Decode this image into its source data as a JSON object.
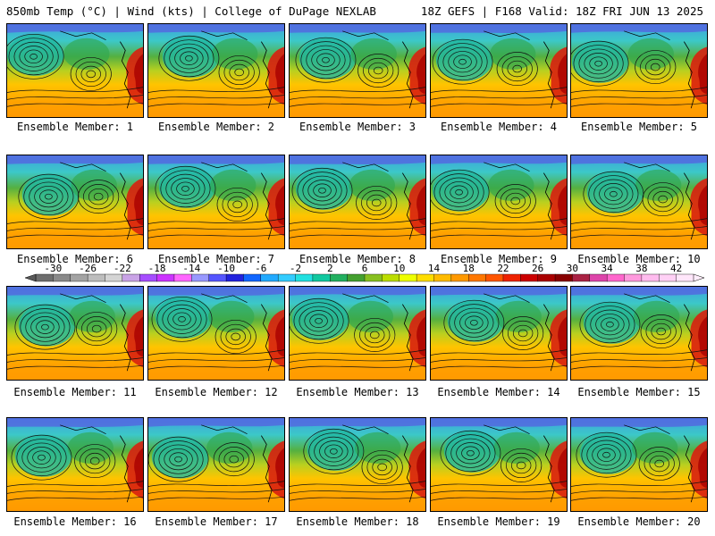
{
  "header": {
    "left_title": "850mb Temp (°C) | Wind (kts) | College of DuPage NEXLAB",
    "right_title": "18Z GEFS | F168 Valid: 18Z FRI JUN 13 2025"
  },
  "members": [
    {
      "label": "Ensemble Member: 1"
    },
    {
      "label": "Ensemble Member: 2"
    },
    {
      "label": "Ensemble Member: 3"
    },
    {
      "label": "Ensemble Member: 4"
    },
    {
      "label": "Ensemble Member: 5"
    },
    {
      "label": "Ensemble Member: 6"
    },
    {
      "label": "Ensemble Member: 7"
    },
    {
      "label": "Ensemble Member: 8"
    },
    {
      "label": "Ensemble Member: 9"
    },
    {
      "label": "Ensemble Member: 10"
    },
    {
      "label": "Ensemble Member: 11"
    },
    {
      "label": "Ensemble Member: 12"
    },
    {
      "label": "Ensemble Member: 13"
    },
    {
      "label": "Ensemble Member: 14"
    },
    {
      "label": "Ensemble Member: 15"
    },
    {
      "label": "Ensemble Member: 16"
    },
    {
      "label": "Ensemble Member: 17"
    },
    {
      "label": "Ensemble Member: 18"
    },
    {
      "label": "Ensemble Member: 19"
    },
    {
      "label": "Ensemble Member: 20"
    }
  ],
  "colorbar": {
    "unit": "°C",
    "tick_labels": [
      "-30",
      "-26",
      "-22",
      "-18",
      "-14",
      "-10",
      "-6",
      "-2",
      "2",
      "6",
      "10",
      "14",
      "18",
      "22",
      "26",
      "30",
      "34",
      "38",
      "42"
    ],
    "colors": [
      "#6e6e6e",
      "#8a8a8a",
      "#a3a3a3",
      "#bdbdbd",
      "#d4d4d4",
      "#c9a3e6",
      "#a64dff",
      "#cc33ff",
      "#ff66ff",
      "#9999ff",
      "#5555ff",
      "#2222dd",
      "#1166ff",
      "#22aaff",
      "#33ccff",
      "#22e0e0",
      "#11c8a0",
      "#22b060",
      "#44a030",
      "#88c020",
      "#bbdd00",
      "#eeff00",
      "#ffdd00",
      "#ffbb00",
      "#ff9900",
      "#ff7700",
      "#ff5500",
      "#ee2200",
      "#cc0000",
      "#aa0000",
      "#880000",
      "#aa2244",
      "#dd44aa",
      "#ff66cc",
      "#ff99dd",
      "#ffbbee",
      "#ffd0f5",
      "#ffe6fa"
    ]
  }
}
